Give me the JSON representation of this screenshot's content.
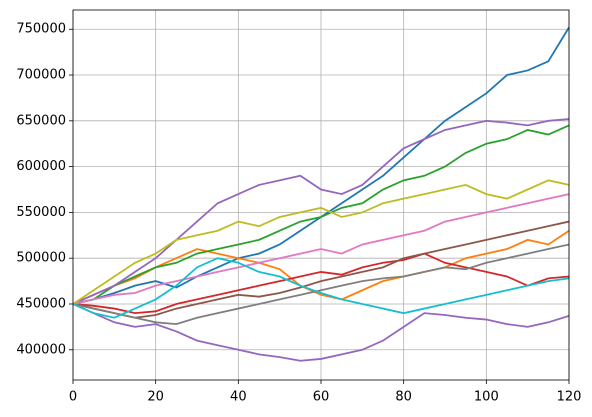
{
  "chart_data": {
    "type": "line",
    "x": [
      0,
      5,
      10,
      15,
      20,
      25,
      30,
      35,
      40,
      45,
      50,
      55,
      60,
      65,
      70,
      75,
      80,
      85,
      90,
      95,
      100,
      105,
      110,
      115,
      120
    ],
    "xlim": [
      0,
      120
    ],
    "xticks": [
      0,
      20,
      40,
      60,
      80,
      100,
      120
    ],
    "ylim": [
      367000,
      771000
    ],
    "yticks": [
      400000,
      450000,
      500000,
      550000,
      600000,
      650000,
      700000,
      750000
    ],
    "grid": true,
    "series": [
      {
        "color": "#1f77b4",
        "values": [
          450000,
          455000,
          462000,
          470000,
          475000,
          468000,
          480000,
          490000,
          500000,
          505000,
          515000,
          530000,
          545000,
          560000,
          575000,
          590000,
          610000,
          630000,
          650000,
          665000,
          680000,
          700000,
          705000,
          715000,
          752000
        ]
      },
      {
        "color": "#9467bd",
        "values": [
          450000,
          440000,
          430000,
          425000,
          428000,
          420000,
          410000,
          405000,
          400000,
          395000,
          392000,
          388000,
          390000,
          395000,
          400000,
          410000,
          425000,
          440000,
          438000,
          435000,
          433000,
          428000,
          425000,
          430000,
          437000
        ]
      },
      {
        "color": "#ff7f0e",
        "values": [
          450000,
          460000,
          470000,
          478000,
          490000,
          500000,
          510000,
          505000,
          500000,
          495000,
          488000,
          470000,
          460000,
          455000,
          465000,
          475000,
          480000,
          485000,
          490000,
          500000,
          505000,
          510000,
          520000,
          515000,
          530000
        ]
      },
      {
        "color": "#2ca02c",
        "values": [
          450000,
          455000,
          470000,
          480000,
          490000,
          495000,
          505000,
          510000,
          515000,
          520000,
          530000,
          540000,
          545000,
          555000,
          560000,
          575000,
          585000,
          590000,
          600000,
          615000,
          625000,
          630000,
          640000,
          635000,
          645000
        ]
      },
      {
        "color": "#d62728",
        "values": [
          450000,
          448000,
          445000,
          440000,
          442000,
          450000,
          455000,
          460000,
          465000,
          470000,
          475000,
          480000,
          485000,
          482000,
          490000,
          495000,
          498000,
          505000,
          495000,
          490000,
          485000,
          480000,
          470000,
          478000,
          480000
        ]
      },
      {
        "color": "#9467bd",
        "values": [
          450000,
          460000,
          470000,
          485000,
          500000,
          520000,
          540000,
          560000,
          570000,
          580000,
          585000,
          590000,
          575000,
          570000,
          580000,
          600000,
          620000,
          630000,
          640000,
          645000,
          650000,
          648000,
          645000,
          650000,
          652000
        ]
      },
      {
        "color": "#8c564b",
        "values": [
          450000,
          445000,
          440000,
          435000,
          438000,
          445000,
          450000,
          455000,
          460000,
          458000,
          462000,
          468000,
          475000,
          480000,
          485000,
          490000,
          500000,
          505000,
          510000,
          515000,
          520000,
          525000,
          530000,
          535000,
          540000
        ]
      },
      {
        "color": "#e377c2",
        "values": [
          450000,
          455000,
          460000,
          462000,
          470000,
          475000,
          480000,
          485000,
          490000,
          495000,
          500000,
          505000,
          510000,
          505000,
          515000,
          520000,
          525000,
          530000,
          540000,
          545000,
          550000,
          555000,
          560000,
          565000,
          570000
        ]
      },
      {
        "color": "#7f7f7f",
        "values": [
          450000,
          445000,
          440000,
          435000,
          430000,
          428000,
          435000,
          440000,
          445000,
          450000,
          455000,
          460000,
          465000,
          470000,
          475000,
          478000,
          480000,
          485000,
          490000,
          488000,
          495000,
          500000,
          505000,
          510000,
          515000
        ]
      },
      {
        "color": "#bcbd22",
        "values": [
          450000,
          465000,
          480000,
          495000,
          505000,
          520000,
          525000,
          530000,
          540000,
          535000,
          545000,
          550000,
          555000,
          545000,
          550000,
          560000,
          565000,
          570000,
          575000,
          580000,
          570000,
          565000,
          575000,
          585000,
          580000
        ]
      },
      {
        "color": "#17becf",
        "values": [
          450000,
          440000,
          435000,
          445000,
          455000,
          470000,
          490000,
          500000,
          495000,
          485000,
          480000,
          470000,
          462000,
          455000,
          450000,
          445000,
          440000,
          445000,
          450000,
          455000,
          460000,
          465000,
          470000,
          475000,
          478000
        ]
      }
    ]
  }
}
